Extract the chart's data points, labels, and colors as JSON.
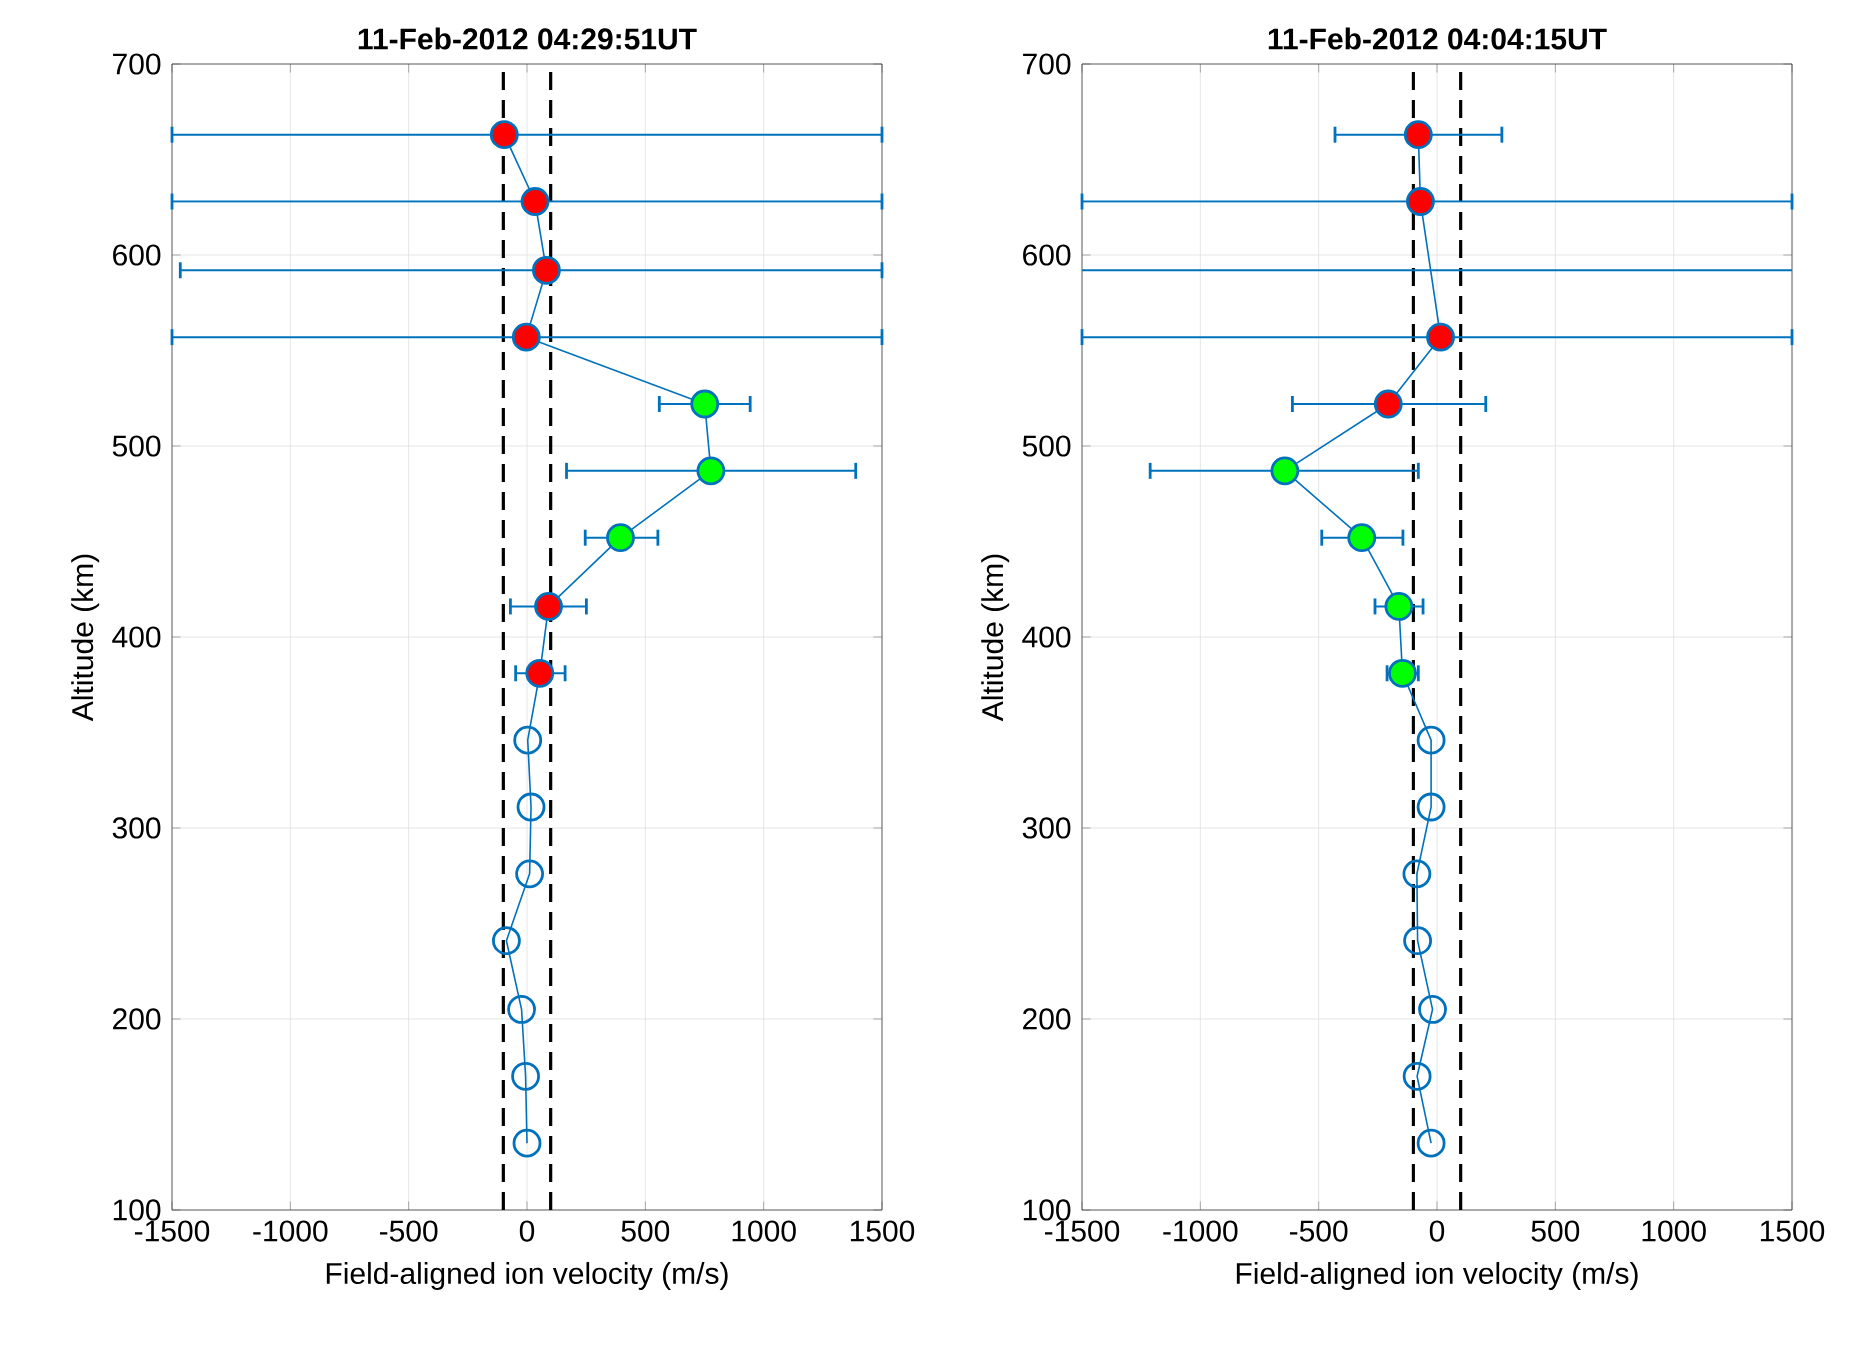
{
  "chart_data": [
    {
      "type": "line",
      "title": "11-Feb-2012 04:29:51UT",
      "xlabel": "Field-aligned ion velocity (m/s)",
      "ylabel": "Altitude (km)",
      "xlim": [
        -1500,
        1500
      ],
      "ylim": [
        100,
        700
      ],
      "xticks": [
        -1500,
        -1000,
        -500,
        0,
        500,
        1000,
        1500
      ],
      "yticks": [
        100,
        200,
        300,
        400,
        500,
        600,
        700
      ],
      "grid": true,
      "marker": "circle",
      "line_style": "solid",
      "ref_lines": [
        {
          "axis": "x",
          "value": -100,
          "color": "#000000",
          "line_style": "dashed"
        },
        {
          "axis": "x",
          "value": 100,
          "color": "#000000",
          "line_style": "dashed"
        }
      ],
      "series": [
        {
          "color": "#0072bd",
          "x": [
            0,
            -6,
            -23,
            -87,
            11,
            17,
            3,
            54,
            91,
            395,
            777,
            751,
            -3,
            82,
            34,
            -96
          ],
          "values": [
            135,
            170,
            205,
            241,
            276,
            311,
            346,
            381,
            416,
            452,
            487,
            522,
            557,
            592,
            628,
            663
          ],
          "xerrors": [
            null,
            null,
            null,
            null,
            null,
            null,
            null,
            [
              -48,
              161
            ],
            [
              -70,
              251
            ],
            [
              246,
              553
            ],
            [
              167,
              1389
            ],
            [
              559,
              943
            ],
            [
              -1500,
              1500
            ],
            [
              -1465,
              1500
            ],
            [
              -1500,
              1500
            ],
            [
              -1500,
              1500
            ]
          ],
          "colors": [
            null,
            null,
            null,
            null,
            null,
            null,
            null,
            "#ff0000",
            "#ff0000",
            "#00ff00",
            "#00ff00",
            "#00ff00",
            "#ff0000",
            "#ff0000",
            "#ff0000",
            "#ff0000"
          ]
        }
      ]
    },
    {
      "type": "line",
      "title": "11-Feb-2012 04:04:15UT",
      "xlabel": "Field-aligned ion velocity (m/s)",
      "ylabel": "Altitude (km)",
      "xlim": [
        -1500,
        1500
      ],
      "ylim": [
        100,
        700
      ],
      "xticks": [
        -1500,
        -1000,
        -500,
        0,
        500,
        1000,
        1500
      ],
      "yticks": [
        100,
        200,
        300,
        400,
        500,
        600,
        700
      ],
      "grid": true,
      "marker": "circle",
      "line_style": "solid",
      "ref_lines": [
        {
          "axis": "x",
          "value": -100,
          "color": "#000000",
          "line_style": "dashed"
        },
        {
          "axis": "x",
          "value": 100,
          "color": "#000000",
          "line_style": "dashed"
        },
        {
          "axis": "y",
          "value": 592,
          "color": "#0072bd",
          "line_style": "solid"
        }
      ],
      "series": [
        {
          "color": "#0072bd",
          "x": [
            -25,
            -84,
            -19,
            -82,
            -85,
            -25,
            -25,
            -146,
            -161,
            -318,
            -643,
            -206,
            15,
            -70,
            -79
          ],
          "values": [
            135,
            170,
            205,
            241,
            276,
            311,
            346,
            381,
            416,
            452,
            487,
            522,
            557,
            628,
            663
          ],
          "xerrors": [
            null,
            null,
            null,
            null,
            null,
            null,
            null,
            [
              -211,
              -79
            ],
            [
              -262,
              -59
            ],
            [
              -487,
              -144
            ],
            [
              -1212,
              -79
            ],
            [
              -611,
              206
            ],
            [
              -1500,
              1500
            ],
            [
              -1500,
              1500
            ],
            [
              -431,
              274
            ]
          ],
          "colors": [
            null,
            null,
            null,
            null,
            null,
            null,
            null,
            "#00ff00",
            "#00ff00",
            "#00ff00",
            "#00ff00",
            "#ff0000",
            "#ff0000",
            "#ff0000",
            "#ff0000"
          ]
        }
      ]
    }
  ]
}
